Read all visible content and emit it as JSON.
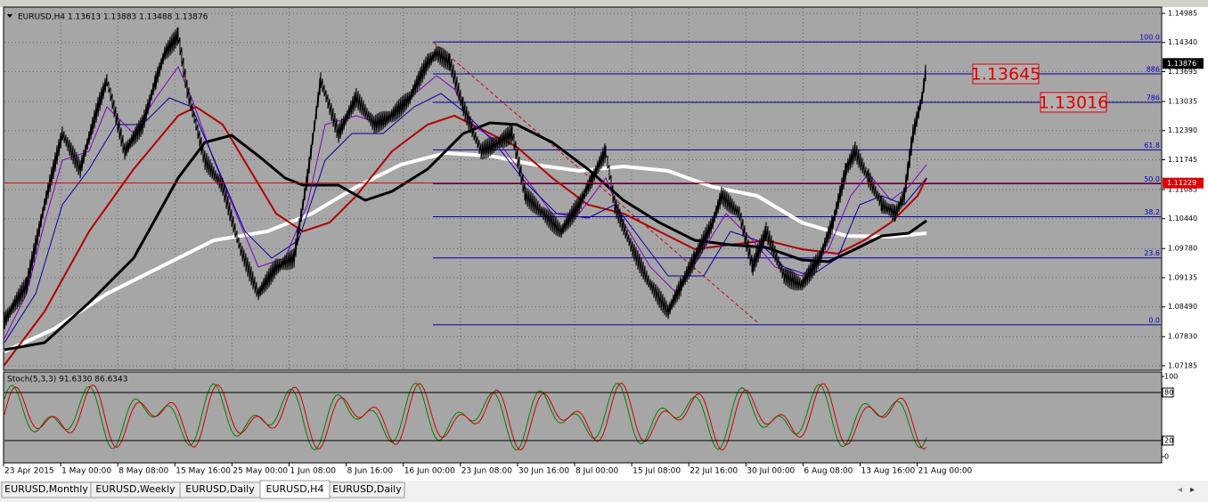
{
  "header": {
    "info": "EURUSD,H4  1.13613 1.13883 1.13488 1.13876"
  },
  "price_axis": {
    "ylim": [
      1.07086,
      1.15123
    ],
    "yticks": [
      1.14985,
      {
        "value": 1.1434,
        "label": "1.14340"
      },
      1.13695,
      1.13035,
      {
        "value": 1.1239,
        "label": "1.12390"
      },
      1.11745,
      1.11085,
      {
        "value": 1.1044,
        "label": "1.10440"
      },
      {
        "value": 1.0978,
        "label": "1.09780"
      },
      1.09135,
      {
        "value": 1.0849,
        "label": "1.08490"
      },
      {
        "value": 1.0783,
        "label": "1.07830"
      },
      1.07185
    ]
  },
  "current_price": 1.13876,
  "line_price": 1.11229,
  "fibonacci": {
    "levels": [
      {
        "value": 1.14353,
        "label": "100.0"
      },
      {
        "value": 1.13645,
        "label": "886"
      },
      {
        "value": 1.13016,
        "label": "786"
      },
      {
        "value": 1.11964,
        "label": "61.8"
      },
      {
        "value": 1.11213,
        "label": "50.0"
      },
      {
        "value": 1.10483,
        "label": "38.2"
      },
      {
        "value": 1.09574,
        "label": "23.6"
      },
      {
        "value": 1.08093,
        "label": "0.0"
      }
    ]
  },
  "callouts": [
    1.13645,
    1.13016
  ],
  "stochastic": {
    "title": "Stoch(5,3,3) 91.6330 86.6343",
    "ylim": [
      0,
      100
    ],
    "ticks": [
      100,
      80,
      20,
      0
    ]
  },
  "time_axis": {
    "labels": [
      "23 Apr 2015",
      "1 May 00:00",
      "8 May 08:00",
      "15 May 16:00",
      "25 May 00:00",
      "1 Jun 08:00",
      "8 Jun 16:00",
      "16 Jun 00:00",
      "23 Jun 08:00",
      "30 Jun 16:00",
      "8 Jul 00:00",
      "15 Jul 08:00",
      "22 Jul 16:00",
      "30 Jul 00:00",
      "6 Aug 08:00",
      "13 Aug 16:00",
      "21 Aug 00:00"
    ]
  },
  "tabs": [
    "EURUSD,Monthly",
    "EURUSD,Weekly",
    "EURUSD,Daily",
    "EURUSD,H4",
    "EURUSD,Daily"
  ]
}
